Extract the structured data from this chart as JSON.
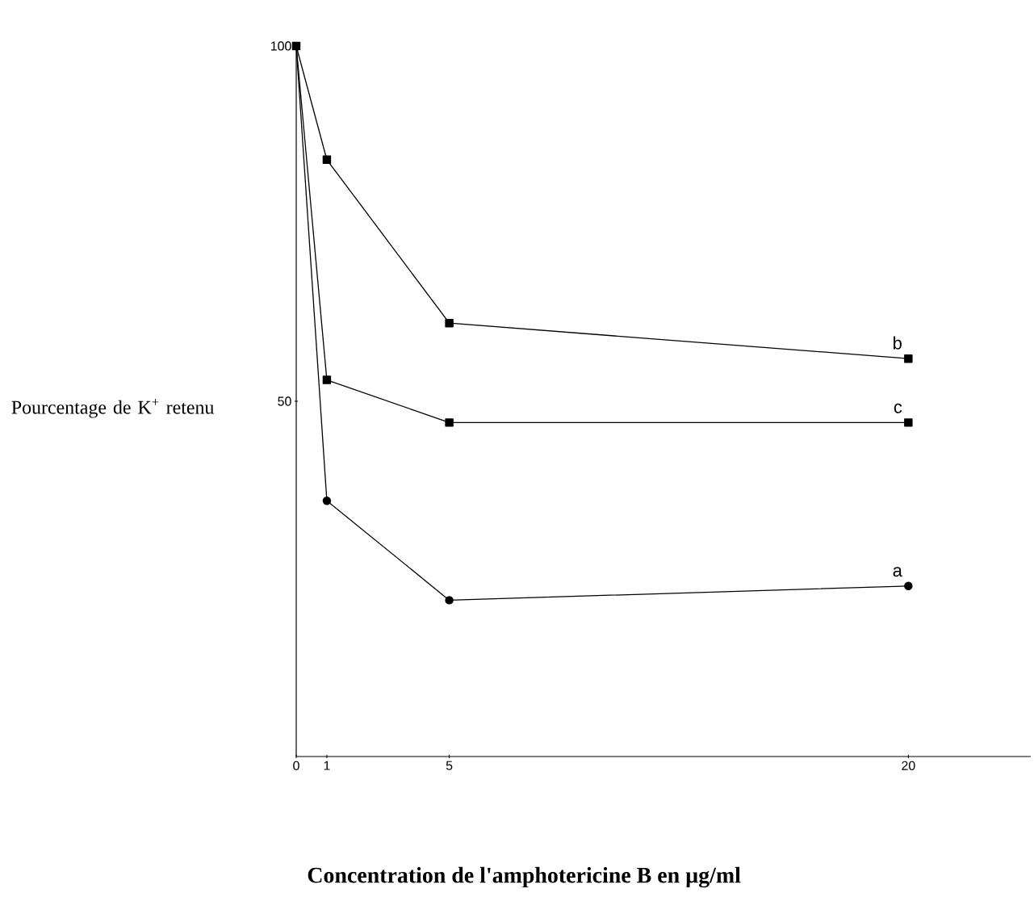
{
  "chart_data": {
    "type": "line",
    "xlabel": "Concentration de l'amphotericine B en µg/ml",
    "ylabel": "Pourcentage de K$^{+}$ retenu",
    "x": [
      0,
      1,
      5,
      20
    ],
    "xlim": [
      0,
      24
    ],
    "ylim": [
      0,
      100
    ],
    "xticks": [
      0,
      1,
      5,
      20
    ],
    "yticks": [
      50,
      100
    ],
    "grid": false,
    "series": [
      {
        "name": "b",
        "color": "#000000",
        "marker": "square",
        "values": [
          100,
          84,
          61,
          56
        ]
      },
      {
        "name": "c",
        "color": "#000000",
        "marker": "square",
        "values": [
          100,
          53,
          47,
          47
        ]
      },
      {
        "name": "a",
        "color": "#000000",
        "marker": "circle",
        "values": [
          100,
          36,
          22,
          24
        ]
      }
    ]
  }
}
